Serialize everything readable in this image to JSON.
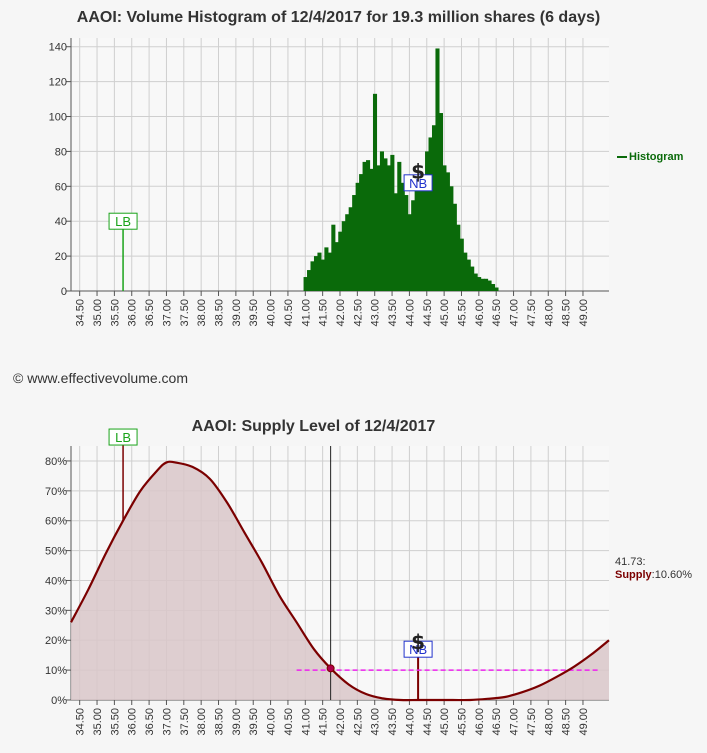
{
  "copyright": "© www.effectivevolume.com",
  "legend": {
    "histogram": "Histogram"
  },
  "supply_note": {
    "price": "41.73:",
    "label": "Supply",
    "value": ":10.60%"
  },
  "chart_data": [
    {
      "type": "bar",
      "title": "AAOI: Volume Histogram of 12/4/2017 for 19.3 million shares (6 days)",
      "xlim": [
        34.25,
        49.75
      ],
      "ylim": [
        0,
        145
      ],
      "yticks": [
        0,
        20,
        40,
        60,
        80,
        100,
        120,
        140
      ],
      "xticks": [
        "34.50",
        "35.00",
        "35.50",
        "36.00",
        "36.50",
        "37.00",
        "37.50",
        "38.00",
        "38.50",
        "39.00",
        "39.50",
        "40.00",
        "40.50",
        "41.00",
        "41.50",
        "42.00",
        "42.50",
        "43.00",
        "43.50",
        "44.00",
        "44.50",
        "45.00",
        "45.50",
        "46.00",
        "46.50",
        "47.00",
        "47.50",
        "48.00",
        "48.50",
        "49.00"
      ],
      "grid": true,
      "legend": "right",
      "color": "#0a6a0a",
      "series": [
        {
          "name": "Histogram",
          "x": [
            41.0,
            41.1,
            41.2,
            41.3,
            41.4,
            41.5,
            41.6,
            41.7,
            41.8,
            41.9,
            42.0,
            42.1,
            42.2,
            42.3,
            42.4,
            42.5,
            42.6,
            42.7,
            42.8,
            42.9,
            43.0,
            43.1,
            43.2,
            43.3,
            43.4,
            43.5,
            43.6,
            43.7,
            43.8,
            43.9,
            44.0,
            44.1,
            44.2,
            44.3,
            44.4,
            44.5,
            44.6,
            44.7,
            44.8,
            44.9,
            45.0,
            45.1,
            45.2,
            45.3,
            45.4,
            45.5,
            45.6,
            45.7,
            45.8,
            45.9,
            46.0,
            46.1,
            46.2,
            46.3,
            46.4,
            46.5
          ],
          "values": [
            8,
            12,
            17,
            20,
            22,
            18,
            25,
            22,
            38,
            28,
            34,
            40,
            44,
            48,
            55,
            62,
            67,
            74,
            75,
            70,
            113,
            72,
            80,
            76,
            72,
            78,
            56,
            74,
            62,
            55,
            44,
            52,
            58,
            62,
            65,
            80,
            88,
            95,
            139,
            102,
            72,
            68,
            60,
            50,
            38,
            30,
            22,
            18,
            14,
            10,
            8,
            7,
            7,
            6,
            4,
            2
          ]
        }
      ],
      "annotations": [
        {
          "label": "LB",
          "x": 35.75,
          "y": 40,
          "color": "#1aa31a"
        },
        {
          "label": "NB",
          "x": 44.25,
          "y": 62,
          "color": "#2233cc"
        },
        {
          "label": "$",
          "x": 44.25,
          "y": 68
        }
      ]
    },
    {
      "type": "area",
      "title": "AAOI: Supply Level of 12/4/2017",
      "xlim": [
        34.25,
        49.75
      ],
      "ylim": [
        0,
        85
      ],
      "yticks": [
        "0%",
        "10%",
        "20%",
        "30%",
        "40%",
        "50%",
        "60%",
        "70%",
        "80%"
      ],
      "xticks": [
        "34.50",
        "35.00",
        "35.50",
        "36.00",
        "36.50",
        "37.00",
        "37.50",
        "38.00",
        "38.50",
        "39.00",
        "39.50",
        "40.00",
        "40.50",
        "41.00",
        "41.50",
        "42.00",
        "42.50",
        "43.00",
        "43.50",
        "44.00",
        "44.50",
        "45.00",
        "45.50",
        "46.00",
        "46.50",
        "47.00",
        "47.50",
        "48.00",
        "48.50",
        "49.00"
      ],
      "grid": true,
      "line_color": "#7b0000",
      "fill_color": "#d9c7c9",
      "series": [
        {
          "name": "Supply",
          "x": [
            34.25,
            34.75,
            35.25,
            35.75,
            36.25,
            36.75,
            37.0,
            37.25,
            37.75,
            38.25,
            38.75,
            39.25,
            39.75,
            40.25,
            40.75,
            41.25,
            41.73,
            42.25,
            42.75,
            43.25,
            43.75,
            44.25,
            44.75,
            45.25,
            45.75,
            46.25,
            46.75,
            47.25,
            47.75,
            48.25,
            48.75,
            49.25,
            49.75
          ],
          "values": [
            26,
            37,
            49,
            60,
            70,
            77,
            79.5,
            79.5,
            78,
            74,
            66,
            56,
            46,
            35,
            26,
            17,
            10.6,
            5.2,
            2,
            0.5,
            0,
            0,
            0,
            0,
            0,
            0.4,
            1,
            2.6,
            4.8,
            7.8,
            11.2,
            15.3,
            20
          ]
        }
      ],
      "current": {
        "x": 41.73,
        "y": 10.6
      },
      "reference_line": {
        "y": 10,
        "x_start": 40.75,
        "x_end": 49.5,
        "color": "#ee22ee"
      },
      "annotations": [
        {
          "label": "LB",
          "x": 35.75,
          "y": 88,
          "color": "#1aa31a"
        },
        {
          "label": "NB",
          "x": 44.25,
          "y": 17,
          "color": "#2233cc"
        },
        {
          "label": "$",
          "x": 44.25,
          "y": 19
        }
      ]
    }
  ]
}
